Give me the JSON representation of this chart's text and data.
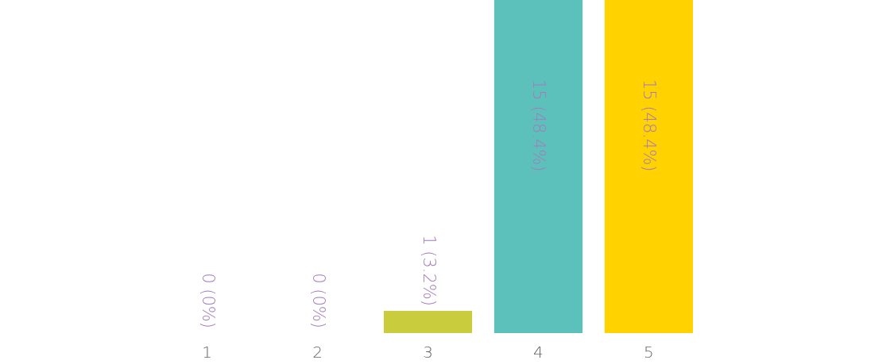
{
  "chart_data": {
    "type": "bar",
    "categories": [
      "1",
      "2",
      "3",
      "4",
      "5"
    ],
    "values": [
      0,
      0,
      1,
      15,
      15
    ],
    "colors": [
      "#d4b0e0",
      "#f7b9a0",
      "#c9cc3c",
      "#5dc1bb",
      "#ffd200"
    ],
    "value_labels": [
      "0 (0%)",
      "0 (0%)",
      "1 (3.2%)",
      "15 (48.4%)",
      "15 (48.4%)"
    ]
  }
}
